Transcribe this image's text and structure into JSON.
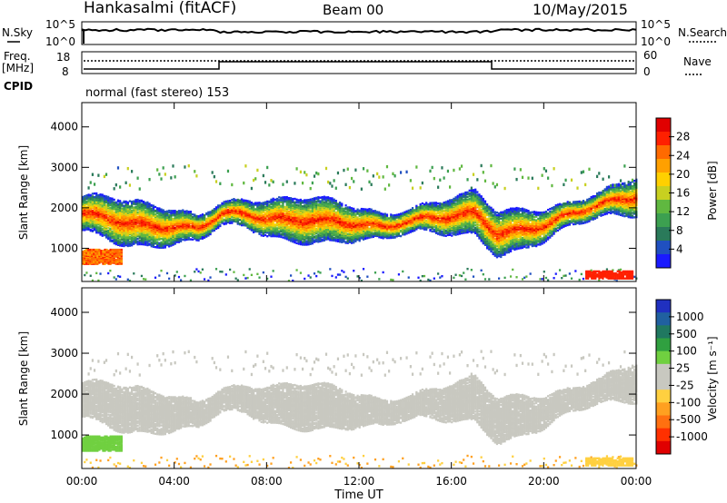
{
  "header": {
    "station": "Hankasalmi (fitACF)",
    "beam": "Beam 00",
    "date": "10/May/2015"
  },
  "panels": {
    "nsky_label": "N.Sky",
    "nsearch_label": "N.Search",
    "freq_label": "Freq.",
    "freq_unit": "[MHz]",
    "nave_label": "Nave",
    "cpid_label": "CPID",
    "cpid_text": "normal (fast stereo) 153",
    "noise_ticks_left": [
      "10^5",
      "10^0"
    ],
    "noise_ticks_right": [
      "10^5",
      "10^0"
    ],
    "freq_ticks": [
      "18",
      "8"
    ],
    "nave_ticks": [
      "60",
      "0"
    ]
  },
  "power_panel": {
    "ylabel": "Slant Range [km]",
    "yticks": [
      "4000",
      "3000",
      "2000",
      "1000"
    ],
    "colorbar_label": "Power [dB]",
    "colorbar_ticks": [
      "28",
      "24",
      "20",
      "16",
      "12",
      "8",
      "4"
    ],
    "colors": [
      "#1a1aff",
      "#2050c0",
      "#2a7a5a",
      "#3ca050",
      "#60b840",
      "#c8d020",
      "#ffd000",
      "#ffa000",
      "#ff6a00",
      "#ff2000",
      "#e00000"
    ]
  },
  "velocity_panel": {
    "ylabel": "Slant Range [km]",
    "yticks": [
      "4000",
      "3000",
      "2000",
      "1000"
    ],
    "colorbar_label": "Velocity [m s⁻¹]",
    "colorbar_ticks": [
      "1000",
      "500",
      "100",
      "25",
      "-25",
      "-100",
      "-500",
      "-1000"
    ],
    "colors": [
      "#2030c0",
      "#2060a0",
      "#207860",
      "#30a040",
      "#70d040",
      "#c8c8c0",
      "#c8c8c0",
      "#ffd040",
      "#ffa020",
      "#ff7010",
      "#ff3000",
      "#e00000"
    ],
    "ground_color": "#c8c8c0"
  },
  "time_axis": {
    "xlabel": "Time UT",
    "ticks": [
      "00:00",
      "04:00",
      "08:00",
      "12:00",
      "16:00",
      "20:00",
      "00:00"
    ]
  },
  "chart_data": {
    "type": "heatmap",
    "title": "Hankasalmi (fitACF)  Beam 00  10/May/2015",
    "xlabel": "Time UT",
    "ylabel": "Slant Range [km]",
    "xlim": [
      0,
      24
    ],
    "ylim": [
      180,
      4600
    ],
    "power_range_dB": [
      0,
      30
    ],
    "velocity_range": [
      -1000,
      1000
    ],
    "main_backscatter_band": [
      {
        "t": 0.0,
        "range": 1900
      },
      {
        "t": 1.0,
        "range": 1800
      },
      {
        "t": 2.0,
        "range": 1650
      },
      {
        "t": 3.0,
        "range": 1580
      },
      {
        "t": 4.0,
        "range": 1560
      },
      {
        "t": 5.0,
        "range": 1520
      },
      {
        "t": 6.0,
        "range": 1900
      },
      {
        "t": 7.0,
        "range": 1880
      },
      {
        "t": 8.0,
        "range": 1780
      },
      {
        "t": 9.0,
        "range": 1720
      },
      {
        "t": 10.0,
        "range": 1740
      },
      {
        "t": 11.0,
        "range": 1680
      },
      {
        "t": 12.0,
        "range": 1640
      },
      {
        "t": 13.0,
        "range": 1550
      },
      {
        "t": 14.0,
        "range": 1700
      },
      {
        "t": 15.0,
        "range": 1780
      },
      {
        "t": 16.0,
        "range": 1830
      },
      {
        "t": 17.0,
        "range": 1900
      },
      {
        "t": 18.0,
        "range": 1380
      },
      {
        "t": 19.0,
        "range": 1480
      },
      {
        "t": 20.0,
        "range": 1600
      },
      {
        "t": 21.0,
        "range": 1850
      },
      {
        "t": 22.0,
        "range": 2050
      },
      {
        "t": 23.0,
        "range": 2200
      },
      {
        "t": 24.0,
        "range": 2320
      }
    ],
    "near_range_patch": {
      "t_start": 0.0,
      "t_end": 1.7,
      "range_center": 820,
      "power_dB": 24
    },
    "late_patch": {
      "t_start": 21.8,
      "t_end": 23.8,
      "range_center": 380,
      "power_dB": 26
    }
  }
}
